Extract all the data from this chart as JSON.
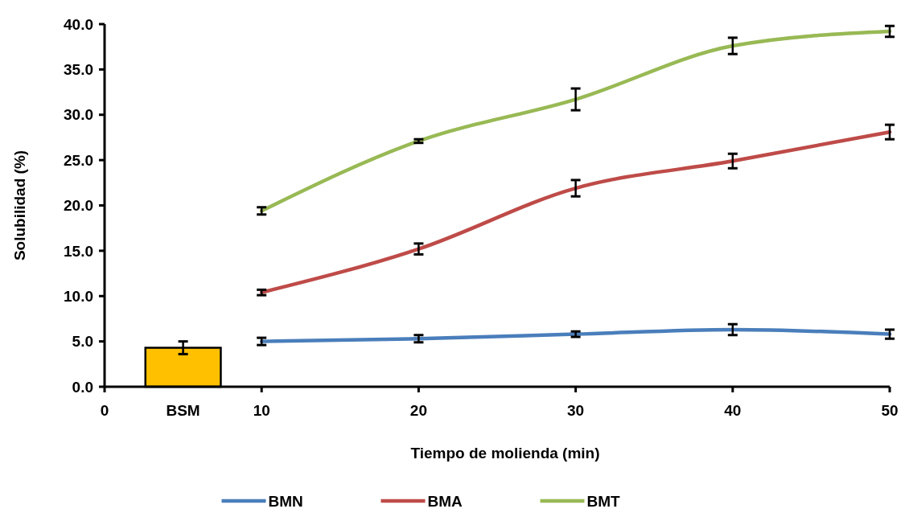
{
  "chart_data": {
    "type": "line",
    "xlabel": "Tiempo de molienda (min)",
    "ylabel": "Solubilidad (%)",
    "xlim": [
      0,
      50
    ],
    "xticks": [
      0,
      {
        "value": 5,
        "label": "BSM"
      },
      10,
      20,
      30,
      40,
      50
    ],
    "ylim": [
      0,
      40
    ],
    "yticks": [
      {
        "value": 0,
        "label": "0.0"
      },
      {
        "value": 5,
        "label": "5.0"
      },
      {
        "value": 10,
        "label": "10.0"
      },
      {
        "value": 15,
        "label": "15.0"
      },
      {
        "value": 20,
        "label": "20.0"
      },
      {
        "value": 25,
        "label": "25.0"
      },
      {
        "value": 30,
        "label": "30.0"
      },
      {
        "value": 35,
        "label": "35.0"
      },
      {
        "value": 40,
        "label": "40.0"
      }
    ],
    "grid": false,
    "legend": "bottom",
    "marker": "none",
    "line_style": "solid",
    "series": [
      {
        "type": "bar",
        "color": "#ffc000",
        "x": [
          5
        ],
        "values": [
          4.3
        ],
        "errors": [
          0.7
        ]
      },
      {
        "name": "BMN",
        "color": "#4a7ebb",
        "x": [
          10,
          20,
          30,
          40,
          50
        ],
        "values": [
          5.0,
          5.3,
          5.8,
          6.3,
          5.8
        ],
        "errors": [
          0.4,
          0.4,
          0.3,
          0.6,
          0.5
        ]
      },
      {
        "name": "BMA",
        "color": "#be4b48",
        "x": [
          10,
          20,
          30,
          40,
          50
        ],
        "values": [
          10.4,
          15.2,
          21.9,
          24.9,
          28.1
        ],
        "errors": [
          0.3,
          0.6,
          0.9,
          0.8,
          0.8
        ]
      },
      {
        "name": "BMT",
        "color": "#98b954",
        "x": [
          10,
          20,
          30,
          40,
          50
        ],
        "values": [
          19.4,
          27.1,
          31.7,
          37.6,
          39.2
        ],
        "errors": [
          0.4,
          0.2,
          1.2,
          0.9,
          0.6
        ]
      }
    ]
  }
}
